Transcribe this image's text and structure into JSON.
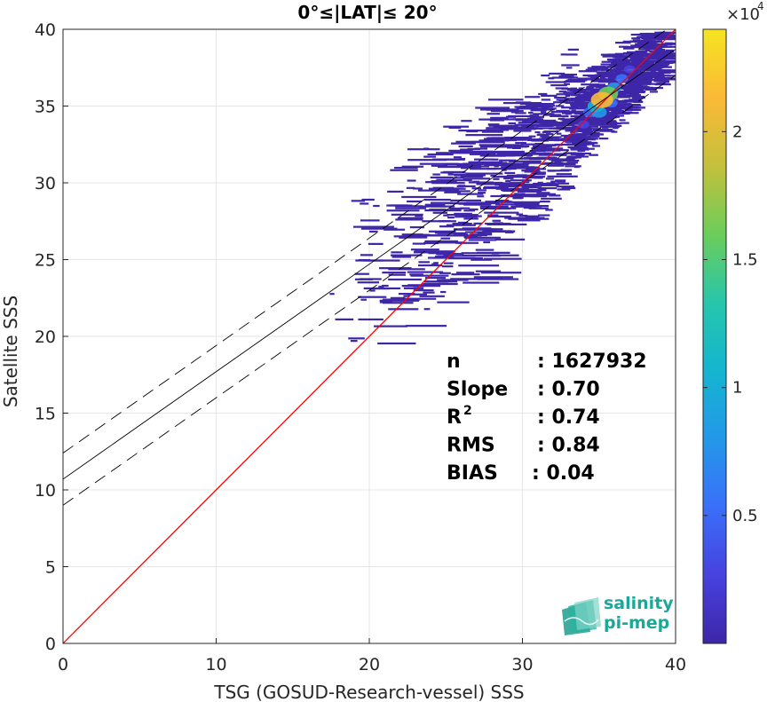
{
  "chart_data": {
    "type": "heatmap",
    "title": "0°≤|LAT|≤ 20°",
    "xlabel": "TSG (GOSUD-Research-vessel) SSS",
    "ylabel": "Satellite SSS",
    "xlim": [
      0,
      40
    ],
    "ylim": [
      0,
      40
    ],
    "xticks": [
      "0",
      "10",
      "20",
      "30",
      "40"
    ],
    "yticks": [
      "0",
      "5",
      "10",
      "15",
      "20",
      "25",
      "30",
      "35",
      "40"
    ],
    "grid": true,
    "colorbar": {
      "range": [
        0,
        24000
      ],
      "multiplier": "×10",
      "exponent": "4",
      "ticks": [
        {
          "value": 5000,
          "label": "0.5"
        },
        {
          "value": 10000,
          "label": "1"
        },
        {
          "value": 15000,
          "label": "1.5"
        },
        {
          "value": 20000,
          "label": "2"
        }
      ],
      "colormap": [
        "#3e26a8",
        "#4742e0",
        "#3a6ffa",
        "#2398e8",
        "#14b5d0",
        "#27c6ab",
        "#6ccd5a",
        "#c4c03b",
        "#fbb937",
        "#f5e422"
      ]
    },
    "reference_line": {
      "label": "1:1",
      "slope": 1,
      "intercept": 0,
      "color": "#ff0000"
    },
    "fit_line": {
      "slope": 0.7,
      "intercept": 10.7,
      "color": "#000000"
    },
    "fit_bounds": [
      {
        "slope": 0.7,
        "intercept": 12.4
      },
      {
        "slope": 0.7,
        "intercept": 9.0
      }
    ],
    "density_cells": [
      {
        "x": 35.2,
        "y": 35.4,
        "count": 20000
      },
      {
        "x": 35.6,
        "y": 35.8,
        "count": 16000
      },
      {
        "x": 34.8,
        "y": 35.0,
        "count": 11000
      },
      {
        "x": 35.0,
        "y": 34.6,
        "count": 9000
      },
      {
        "x": 36.0,
        "y": 36.2,
        "count": 7000
      },
      {
        "x": 34.4,
        "y": 34.6,
        "count": 5500
      },
      {
        "x": 36.5,
        "y": 36.8,
        "count": 4000
      },
      {
        "x": 35.8,
        "y": 35.2,
        "count": 4500
      },
      {
        "x": 34.0,
        "y": 33.8,
        "count": 2500
      },
      {
        "x": 37.0,
        "y": 37.4,
        "count": 2000
      },
      {
        "x": 33.5,
        "y": 33.5,
        "count": 1200
      },
      {
        "x": 33.0,
        "y": 32.8,
        "count": 700
      },
      {
        "x": 37.5,
        "y": 38.0,
        "count": 900
      }
    ],
    "stats": [
      {
        "label": "n",
        "value": ": 1627932"
      },
      {
        "label": "Slope",
        "value": ": 0.70"
      },
      {
        "label": "R",
        "sup": "2",
        "value": ": 0.74"
      },
      {
        "label": "RMS",
        "value": ": 0.84"
      },
      {
        "label": "BIAS",
        "value": ": 0.04"
      }
    ]
  },
  "logo": {
    "line1": "salinity",
    "line2": "pi-mep"
  }
}
